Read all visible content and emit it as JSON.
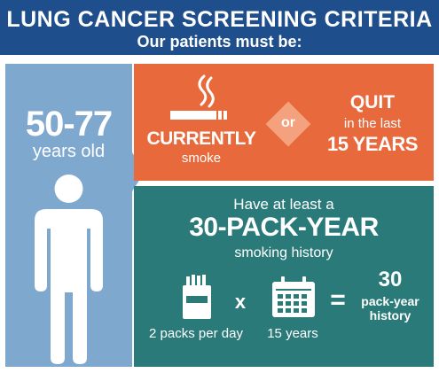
{
  "header": {
    "title": "LUNG CANCER SCREENING CRITERIA",
    "subtitle": "Our patients must be:"
  },
  "colors": {
    "header_bg": "#1f4e8c",
    "age_panel": "#7fa8cf",
    "smoking_panel": "#e8693b",
    "or_diamond": "#f4a27d",
    "history_panel": "#2b7a7a",
    "text": "#ffffff"
  },
  "age": {
    "range": "50-77",
    "unit": "years old",
    "icon": "person-icon"
  },
  "smoking_status": {
    "icon": "cigarette-icon",
    "currently": "CURRENTLY",
    "currently_sub": "smoke",
    "or": "or",
    "quit": "QUIT",
    "quit_mid": "in the last",
    "quit_years": "15 YEARS"
  },
  "history": {
    "intro": "Have at least a",
    "headline": "30-PACK-YEAR",
    "outro": "smoking history",
    "equation": {
      "term1_icon": "cigarette-pack-icon",
      "term1_label": "2 packs per day",
      "times": "x",
      "term2_icon": "calendar-icon",
      "term2_label": "15 years",
      "equals": "=",
      "result_value": "30",
      "result_unit_line1": "pack-year",
      "result_unit_line2": "history"
    }
  }
}
